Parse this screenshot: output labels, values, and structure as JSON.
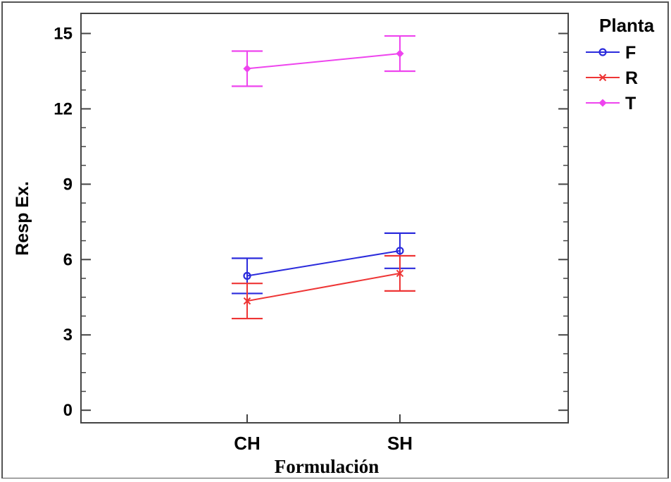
{
  "chart_data": {
    "type": "line",
    "xlabel": "Formulación",
    "ylabel": "Resp Ex.",
    "categories": [
      "CH",
      "SH"
    ],
    "ylim": [
      -0.5,
      15.8
    ],
    "yticks": [
      0,
      3,
      6,
      9,
      12,
      15
    ],
    "legend": {
      "title": "Planta",
      "placement": "top-right-outside"
    },
    "series": [
      {
        "name": "F",
        "color": "#2b2bdc",
        "marker": "circle",
        "values": [
          5.35,
          6.35
        ],
        "lower": [
          4.65,
          5.65
        ],
        "upper": [
          6.05,
          7.05
        ]
      },
      {
        "name": "R",
        "color": "#ee3535",
        "marker": "x",
        "values": [
          4.35,
          5.45
        ],
        "lower": [
          3.65,
          4.75
        ],
        "upper": [
          5.05,
          6.15
        ]
      },
      {
        "name": "T",
        "color": "#ee44ee",
        "marker": "diamond",
        "values": [
          13.6,
          14.2
        ],
        "lower": [
          12.9,
          13.5
        ],
        "upper": [
          14.3,
          14.9
        ]
      }
    ]
  }
}
